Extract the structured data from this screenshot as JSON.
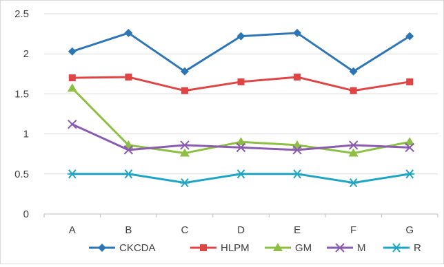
{
  "chart_data": {
    "type": "line",
    "title": "",
    "xlabel": "",
    "ylabel": "",
    "categories": [
      "A",
      "B",
      "C",
      "D",
      "E",
      "F",
      "G"
    ],
    "ylim": [
      0,
      2.5
    ],
    "yticks": [
      "0",
      "0.5",
      "1",
      "1.5",
      "2",
      "2.5"
    ],
    "grid": "horizontal",
    "legend_position": "bottom",
    "series": [
      {
        "name": "CKCDA",
        "color": "#2E75B6",
        "marker": "diamond",
        "values": [
          2.03,
          2.26,
          1.78,
          2.22,
          2.26,
          1.78,
          2.22
        ]
      },
      {
        "name": "HLPM",
        "color": "#E04545",
        "marker": "square",
        "values": [
          1.7,
          1.71,
          1.54,
          1.65,
          1.71,
          1.54,
          1.65
        ]
      },
      {
        "name": "GM",
        "color": "#8DBF44",
        "marker": "triangle",
        "values": [
          1.57,
          0.86,
          0.76,
          0.9,
          0.86,
          0.76,
          0.9
        ]
      },
      {
        "name": "M",
        "color": "#8A5BB0",
        "marker": "x",
        "values": [
          1.12,
          0.8,
          0.86,
          0.83,
          0.8,
          0.86,
          0.83
        ]
      },
      {
        "name": "R",
        "color": "#1FA5C4",
        "marker": "star",
        "values": [
          0.5,
          0.5,
          0.39,
          0.5,
          0.5,
          0.39,
          0.5
        ]
      }
    ]
  }
}
